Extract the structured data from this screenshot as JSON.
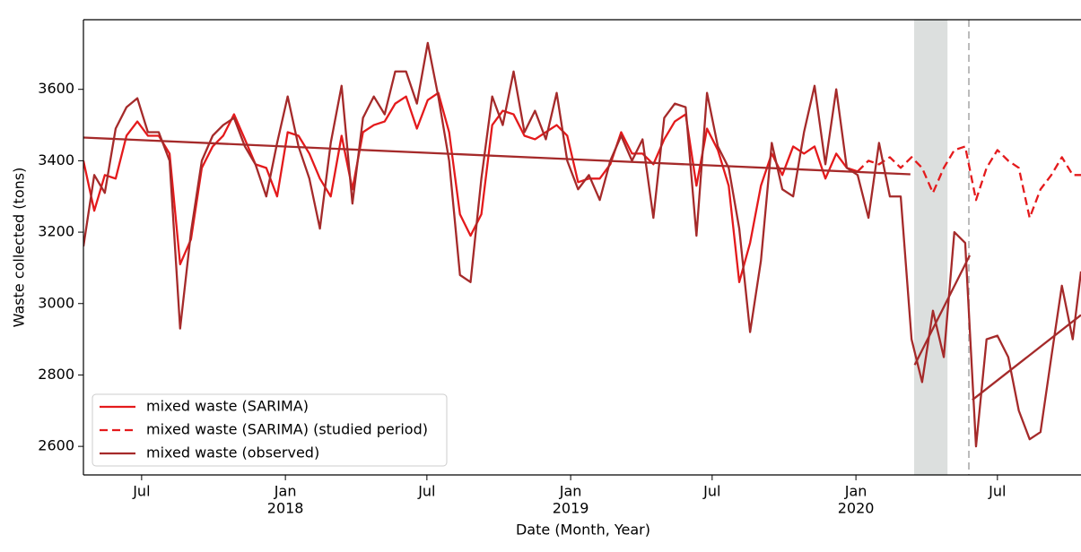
{
  "chart_data": {
    "type": "line",
    "ylabel": "Waste collected (tons)",
    "xlabel": "Date (Month, Year)",
    "xlim": [
      2017.292,
      2020.789
    ],
    "ylim": [
      2520,
      3795
    ],
    "yticks": [
      2600,
      2800,
      3000,
      3200,
      3400,
      3600
    ],
    "xticks": [
      {
        "value": 2017.496,
        "label": "Jul"
      },
      {
        "value": 2018,
        "label": "Jan"
      },
      {
        "value": 2018.496,
        "label": "Jul"
      },
      {
        "value": 2019,
        "label": "Jan"
      },
      {
        "value": 2019.496,
        "label": "Jul"
      },
      {
        "value": 2020,
        "label": "Jan"
      },
      {
        "value": 2020.496,
        "label": "Jul"
      }
    ],
    "year_labels": [
      2018,
      2019,
      2020
    ],
    "legend": "lower left",
    "shaded_span": [
      2020.204,
      2020.321
    ],
    "vline": 2020.396,
    "x": [
      2017.292,
      2017.33,
      2017.367,
      2017.405,
      2017.443,
      2017.481,
      2017.518,
      2017.556,
      2017.594,
      2017.631,
      2017.669,
      2017.707,
      2017.745,
      2017.782,
      2017.82,
      2017.858,
      2017.895,
      2017.933,
      2017.971,
      2018.008,
      2018.046,
      2018.084,
      2018.121,
      2018.159,
      2018.197,
      2018.235,
      2018.272,
      2018.31,
      2018.348,
      2018.385,
      2018.423,
      2018.461,
      2018.499,
      2018.536,
      2018.574,
      2018.612,
      2018.649,
      2018.687,
      2018.725,
      2018.762,
      2018.8,
      2018.838,
      2018.875,
      2018.913,
      2018.951,
      2018.988,
      2019.026,
      2019.064,
      2019.102,
      2019.139,
      2019.177,
      2019.215,
      2019.252,
      2019.29,
      2019.328,
      2019.365,
      2019.403,
      2019.441,
      2019.478,
      2019.516,
      2019.554,
      2019.591,
      2019.629,
      2019.667,
      2019.705,
      2019.742,
      2019.78,
      2019.818,
      2019.855,
      2019.893,
      2019.931,
      2019.968,
      2020.006,
      2020.044,
      2020.081,
      2020.119,
      2020.157,
      2020.195,
      2020.232,
      2020.27,
      2020.308,
      2020.345,
      2020.383,
      2020.421,
      2020.458,
      2020.496,
      2020.534,
      2020.571,
      2020.609,
      2020.647,
      2020.685,
      2020.722,
      2020.76,
      2020.789
    ],
    "series": [
      {
        "name": "mixed waste (SARIMA)",
        "color": "#e41a1c",
        "linestyle": "solid",
        "values": [
          3400,
          3260,
          3360,
          3350,
          3470,
          3510,
          3470,
          3470,
          3420,
          3110,
          3180,
          3380,
          3440,
          3470,
          3530,
          3460,
          3390,
          3380,
          3300,
          3480,
          3470,
          3420,
          3350,
          3300,
          3470,
          3320,
          3480,
          3500,
          3510,
          3560,
          3580,
          3490,
          3570,
          3590,
          3480,
          3250,
          3190,
          3250,
          3500,
          3540,
          3530,
          3470,
          3460,
          3480,
          3500,
          3470,
          3340,
          3350,
          3350,
          3390,
          3480,
          3420,
          3420,
          3390,
          3460,
          3510,
          3530,
          3330,
          3490,
          3430,
          3330,
          3060,
          3170,
          3330,
          3420,
          3360,
          3440,
          3420,
          3440,
          3350,
          3420,
          3380,
          3370,
          null,
          null,
          null,
          null,
          null,
          null,
          null,
          null,
          null,
          null,
          null,
          null,
          null,
          null,
          null,
          null,
          null,
          null,
          null,
          null,
          null
        ]
      },
      {
        "name": "mixed waste (SARIMA) (studied period)",
        "color": "#e41a1c",
        "linestyle": "dashed",
        "values": [
          null,
          null,
          null,
          null,
          null,
          null,
          null,
          null,
          null,
          null,
          null,
          null,
          null,
          null,
          null,
          null,
          null,
          null,
          null,
          null,
          null,
          null,
          null,
          null,
          null,
          null,
          null,
          null,
          null,
          null,
          null,
          null,
          null,
          null,
          null,
          null,
          null,
          null,
          null,
          null,
          null,
          null,
          null,
          null,
          null,
          null,
          null,
          null,
          null,
          null,
          null,
          null,
          null,
          null,
          null,
          null,
          null,
          null,
          null,
          null,
          null,
          null,
          null,
          null,
          null,
          null,
          null,
          null,
          null,
          null,
          null,
          null,
          3370,
          3400,
          3390,
          3410,
          3380,
          3410,
          3380,
          3310,
          3380,
          3430,
          3440,
          3290,
          3380,
          3430,
          3400,
          3380,
          3240,
          3320,
          3360,
          3410,
          3360,
          3360
        ]
      },
      {
        "name": "mixed waste (observed)",
        "color": "#a52a2a",
        "linestyle": "solid",
        "values": [
          3160,
          3360,
          3310,
          3490,
          3550,
          3575,
          3480,
          3480,
          3400,
          2930,
          3200,
          3400,
          3470,
          3500,
          3520,
          3440,
          3390,
          3300,
          3450,
          3580,
          3440,
          3350,
          3210,
          3450,
          3610,
          3280,
          3520,
          3580,
          3530,
          3650,
          3650,
          3560,
          3730,
          3580,
          3400,
          3080,
          3060,
          3350,
          3580,
          3500,
          3650,
          3480,
          3540,
          3460,
          3590,
          3400,
          3320,
          3360,
          3290,
          3400,
          3470,
          3400,
          3460,
          3240,
          3520,
          3560,
          3550,
          3190,
          3590,
          3440,
          3380,
          3210,
          2920,
          3120,
          3450,
          3320,
          3300,
          3480,
          3610,
          3390,
          3600,
          3380,
          3360,
          3240,
          3450,
          3300,
          3300,
          2900,
          2780,
          2980,
          2850,
          3200,
          3170,
          2600,
          2900,
          2910,
          2850,
          2700,
          2620,
          2640,
          2850,
          3050,
          2900,
          3090
        ]
      }
    ],
    "trend_lines": [
      {
        "color": "#a52a2a",
        "x": [
          2017.292,
          2020.191
        ],
        "values": [
          3465,
          3362
        ]
      },
      {
        "color": "#a52a2a",
        "x": [
          2020.206,
          2020.399
        ],
        "values": [
          2828,
          3135
        ]
      },
      {
        "color": "#a52a2a",
        "x": [
          2020.408,
          2020.789
        ],
        "values": [
          2730,
          2968
        ]
      }
    ]
  }
}
